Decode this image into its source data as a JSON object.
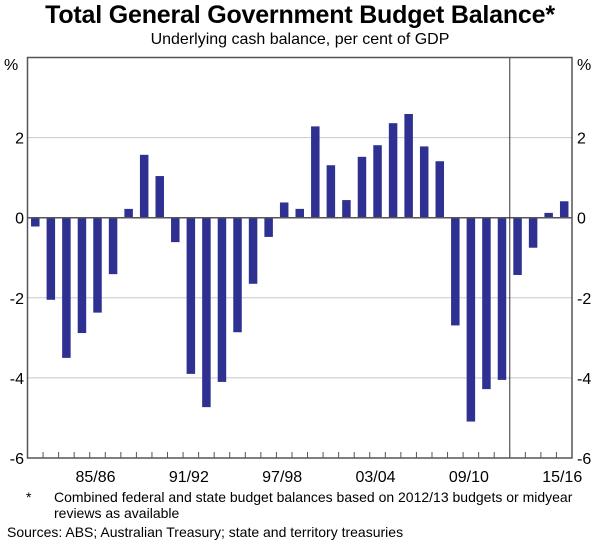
{
  "chart_data": {
    "type": "bar",
    "title": "Total General Government Budget Balance*",
    "subtitle": "Underlying cash balance, per cent of GDP",
    "xlabel": "",
    "ylabel": "%",
    "ylabel_right": "%",
    "ylim": [
      -6,
      4
    ],
    "yticks": [
      -6,
      -4,
      -2,
      0,
      2
    ],
    "ytick_labels": [
      "-6",
      "-4",
      "-2",
      "0",
      "2"
    ],
    "grid": true,
    "bar_color": "#2e3192",
    "categories": [
      "81/82",
      "82/83",
      "83/84",
      "84/85",
      "85/86",
      "86/87",
      "87/88",
      "88/89",
      "89/90",
      "90/91",
      "91/92",
      "92/93",
      "93/94",
      "94/95",
      "95/96",
      "96/97",
      "97/98",
      "98/99",
      "99/00",
      "00/01",
      "01/02",
      "02/03",
      "03/04",
      "04/05",
      "05/06",
      "06/07",
      "07/08",
      "08/09",
      "09/10",
      "10/11",
      "11/12",
      "12/13",
      "13/14",
      "14/15",
      "15/16"
    ],
    "xtick_labels": [
      {
        "category": "85/86",
        "label": "85/86"
      },
      {
        "category": "91/92",
        "label": "91/92"
      },
      {
        "category": "97/98",
        "label": "97/98"
      },
      {
        "category": "03/04",
        "label": "03/04"
      },
      {
        "category": "09/10",
        "label": "09/10"
      },
      {
        "category": "15/16",
        "label": "15/16"
      }
    ],
    "values": [
      -0.22,
      -2.05,
      -3.5,
      -2.88,
      -2.37,
      -1.41,
      0.22,
      1.57,
      1.04,
      -0.61,
      -3.9,
      -4.73,
      -4.1,
      -2.86,
      -1.65,
      -0.48,
      0.38,
      0.22,
      2.28,
      1.31,
      0.44,
      1.52,
      1.81,
      2.36,
      2.59,
      1.78,
      1.41,
      -2.69,
      -5.09,
      -4.28,
      -4.05,
      -1.43,
      -0.75,
      0.12,
      0.41
    ],
    "forecast_divider_after": "11/12",
    "footnote_marker": "*",
    "footnote": "Combined federal and state budget balances based on 2012/13 budgets or midyear reviews as available",
    "sources": "Sources: ABS; Australian Treasury; state and territory treasuries"
  }
}
